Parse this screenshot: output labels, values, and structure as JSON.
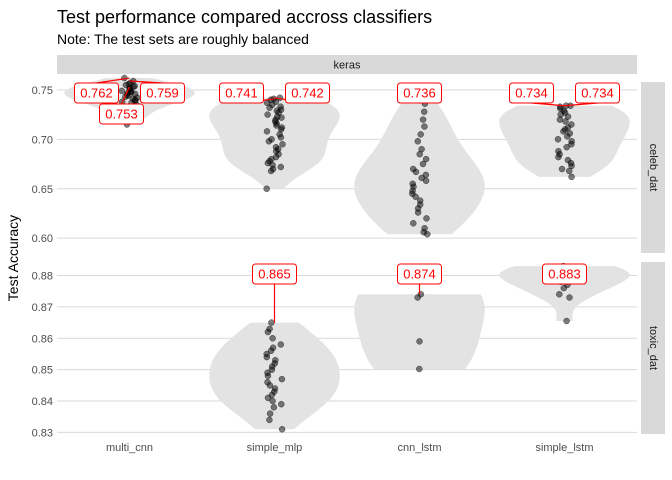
{
  "chart_data": {
    "type": "scatter",
    "title": "Test performance compared accross classifiers",
    "subtitle": "Note: The test sets are roughly balanced",
    "ylabel": "Test Accuracy",
    "xlabel": "",
    "facet_col": "keras",
    "categories": [
      "multi_cnn",
      "simple_mlp",
      "cnn_lstm",
      "simple_lstm"
    ],
    "colors": {
      "strip": "#d9d9d9",
      "violin": "#e3e3e3",
      "label": "#ff0000",
      "point": "#000000"
    },
    "panels": [
      {
        "facet": "celeb_dat",
        "ylim": [
          0.585,
          0.758
        ],
        "yticks": [
          0.6,
          0.65,
          0.7,
          0.75
        ],
        "ytick_labels": [
          "0.60",
          "0.65",
          "0.70",
          "0.75"
        ],
        "groups": [
          {
            "category": "multi_cnn",
            "points": [
              0.762,
              0.759,
              0.757,
              0.756,
              0.755,
              0.754,
              0.753,
              0.752,
              0.751,
              0.75,
              0.749,
              0.748,
              0.748,
              0.747,
              0.746,
              0.745,
              0.744,
              0.743,
              0.742,
              0.741,
              0.74,
              0.739,
              0.738,
              0.737,
              0.735,
              0.733,
              0.73,
              0.728,
              0.725,
              0.72,
              0.715
            ],
            "labels": [
              {
                "value": 0.762,
                "text": "0.762",
                "pos": "left"
              },
              {
                "value": 0.759,
                "text": "0.759",
                "pos": "right"
              },
              {
                "value": 0.753,
                "text": "0.753",
                "pos": "below"
              }
            ]
          },
          {
            "category": "simple_mlp",
            "points": [
              0.742,
              0.741,
              0.74,
              0.738,
              0.737,
              0.735,
              0.733,
              0.732,
              0.73,
              0.729,
              0.727,
              0.725,
              0.723,
              0.722,
              0.72,
              0.718,
              0.716,
              0.714,
              0.712,
              0.71,
              0.708,
              0.705,
              0.702,
              0.7,
              0.698,
              0.695,
              0.692,
              0.69,
              0.688,
              0.685,
              0.682,
              0.68,
              0.678,
              0.676,
              0.674,
              0.672,
              0.67,
              0.668,
              0.65
            ],
            "labels": [
              {
                "value": 0.741,
                "text": "0.741",
                "pos": "left"
              },
              {
                "value": 0.742,
                "text": "0.742",
                "pos": "right"
              }
            ]
          },
          {
            "category": "cnn_lstm",
            "points": [
              0.736,
              0.728,
              0.72,
              0.713,
              0.705,
              0.698,
              0.69,
              0.685,
              0.68,
              0.675,
              0.67,
              0.667,
              0.664,
              0.661,
              0.658,
              0.655,
              0.652,
              0.648,
              0.645,
              0.642,
              0.638,
              0.634,
              0.63,
              0.626,
              0.62,
              0.615,
              0.61,
              0.606,
              0.604
            ],
            "labels": [
              {
                "value": 0.736,
                "text": "0.736",
                "pos": "center"
              }
            ]
          },
          {
            "category": "simple_lstm",
            "points": [
              0.734,
              0.734,
              0.733,
              0.731,
              0.729,
              0.727,
              0.725,
              0.723,
              0.72,
              0.718,
              0.715,
              0.712,
              0.71,
              0.708,
              0.706,
              0.703,
              0.7,
              0.698,
              0.695,
              0.692,
              0.688,
              0.685,
              0.682,
              0.679,
              0.676,
              0.673,
              0.67,
              0.668,
              0.662
            ],
            "labels": [
              {
                "value": 0.734,
                "text": "0.734",
                "pos": "left"
              },
              {
                "value": 0.734,
                "text": "0.734",
                "pos": "right"
              }
            ]
          }
        ]
      },
      {
        "facet": "toxic_dat",
        "ylim": [
          0.8295,
          0.8843
        ],
        "yticks": [
          0.83,
          0.84,
          0.85,
          0.86,
          0.87,
          0.88
        ],
        "ytick_labels": [
          "0.83",
          "0.84",
          "0.85",
          "0.86",
          "0.87",
          "0.88"
        ],
        "groups": [
          {
            "category": "multi_cnn",
            "points": [],
            "labels": []
          },
          {
            "category": "simple_mlp",
            "points": [
              0.865,
              0.863,
              0.862,
              0.86,
              0.858,
              0.857,
              0.856,
              0.855,
              0.854,
              0.853,
              0.852,
              0.851,
              0.85,
              0.849,
              0.848,
              0.847,
              0.846,
              0.845,
              0.844,
              0.843,
              0.842,
              0.841,
              0.84,
              0.839,
              0.838,
              0.836,
              0.834,
              0.831
            ],
            "labels": [
              {
                "value": 0.865,
                "text": "0.865",
                "pos": "center"
              }
            ]
          },
          {
            "category": "cnn_lstm",
            "points": [
              0.874,
              0.873,
              0.859,
              0.8502
            ],
            "labels": [
              {
                "value": 0.874,
                "text": "0.874",
                "pos": "center"
              }
            ]
          },
          {
            "category": "simple_lstm",
            "points": [
              0.883,
              0.8825,
              0.882,
              0.8815,
              0.881,
              0.8805,
              0.88,
              0.879,
              0.878,
              0.877,
              0.876,
              0.874,
              0.873,
              0.8655
            ],
            "labels": [
              {
                "value": 0.883,
                "text": "0.883",
                "pos": "center"
              }
            ]
          }
        ]
      }
    ],
    "grid": true,
    "legend": "none"
  }
}
